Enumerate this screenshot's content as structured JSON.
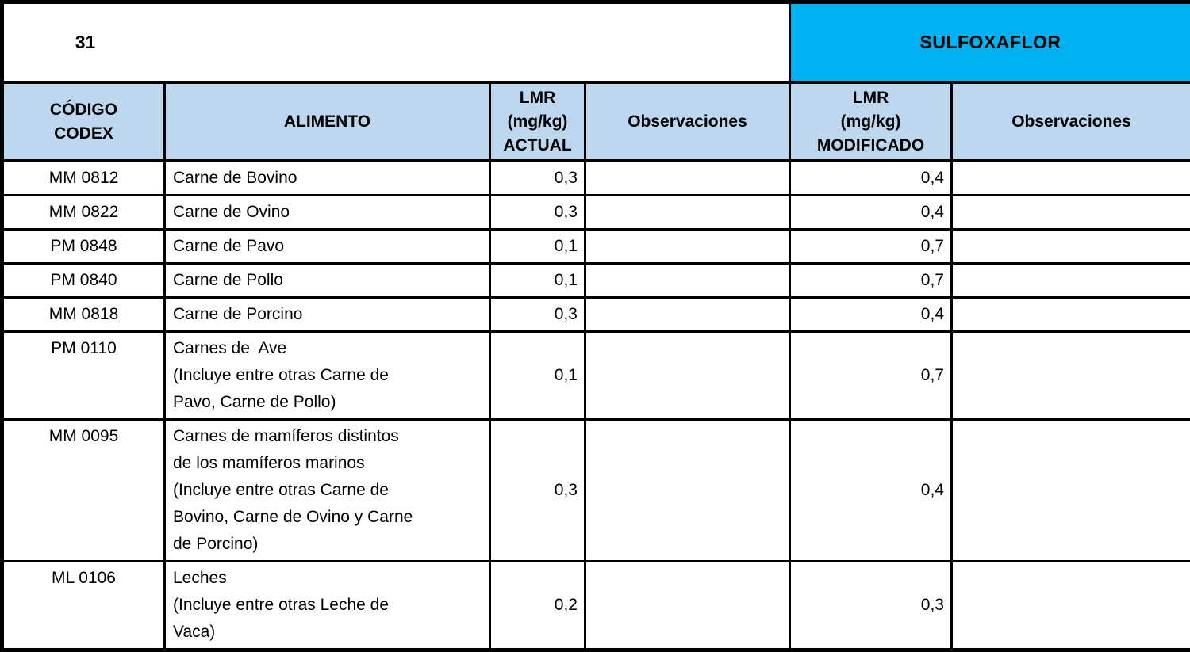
{
  "title_row": {
    "page_number": "31",
    "compound": "SULFOXAFLOR"
  },
  "colors": {
    "compound_band": "#00B0F0",
    "header_band": "#BDD7EE",
    "border": "#000000",
    "text": "#000000",
    "background": "#FFFFFF"
  },
  "table": {
    "headers": [
      {
        "key": "codigo",
        "label": "CÓDIGO\nCODEX"
      },
      {
        "key": "alimento",
        "label": "ALIMENTO"
      },
      {
        "key": "lmr_actual",
        "label": "LMR\n(mg/kg)\nACTUAL"
      },
      {
        "key": "obs_actual",
        "label": "Observaciones"
      },
      {
        "key": "lmr_modificado",
        "label": "LMR\n(mg/kg)\nMODIFICADO"
      },
      {
        "key": "obs_modificado",
        "label": "Observaciones"
      }
    ],
    "rows": [
      {
        "codigo": "MM 0812",
        "alimento": "Carne de Bovino",
        "lmr_actual": "0,3",
        "obs_actual": "",
        "lmr_modificado": "0,4",
        "obs_modificado": ""
      },
      {
        "codigo": "MM 0822",
        "alimento": "Carne de Ovino",
        "lmr_actual": "0,3",
        "obs_actual": "",
        "lmr_modificado": "0,4",
        "obs_modificado": ""
      },
      {
        "codigo": "PM 0848",
        "alimento": "Carne de Pavo",
        "lmr_actual": "0,1",
        "obs_actual": "",
        "lmr_modificado": "0,7",
        "obs_modificado": ""
      },
      {
        "codigo": "PM 0840",
        "alimento": "Carne de Pollo",
        "lmr_actual": "0,1",
        "obs_actual": "",
        "lmr_modificado": "0,7",
        "obs_modificado": ""
      },
      {
        "codigo": "MM 0818",
        "alimento": "Carne de Porcino",
        "lmr_actual": "0,3",
        "obs_actual": "",
        "lmr_modificado": "0,4",
        "obs_modificado": ""
      },
      {
        "codigo": "PM 0110",
        "alimento": "Carnes de  Ave\n(Incluye entre otras Carne de\nPavo, Carne de Pollo)",
        "lmr_actual": "0,1",
        "obs_actual": "",
        "lmr_modificado": "0,7",
        "obs_modificado": ""
      },
      {
        "codigo": "MM 0095",
        "alimento": "Carnes de mamíferos distintos\nde los mamíferos marinos\n(Incluye entre otras Carne de\nBovino, Carne de Ovino y Carne\nde Porcino)",
        "lmr_actual": "0,3",
        "obs_actual": "",
        "lmr_modificado": "0,4",
        "obs_modificado": ""
      },
      {
        "codigo": "ML 0106",
        "alimento": "Leches\n(Incluye entre otras Leche de\nVaca)",
        "lmr_actual": "0,2",
        "obs_actual": "",
        "lmr_modificado": "0,3",
        "obs_modificado": ""
      }
    ]
  }
}
